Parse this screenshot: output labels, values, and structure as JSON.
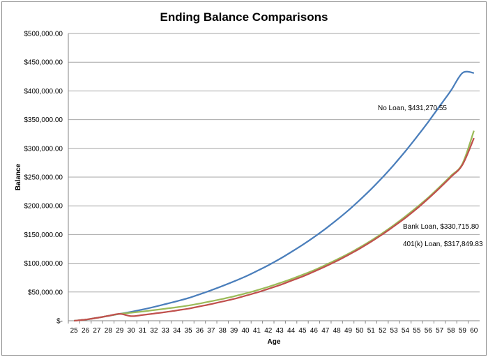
{
  "chart_data": {
    "type": "line",
    "title": "Ending Balance Comparisons",
    "xlabel": "Age",
    "ylabel": "Balance",
    "x": [
      25,
      26,
      27,
      28,
      29,
      30,
      31,
      32,
      33,
      34,
      35,
      36,
      37,
      38,
      39,
      40,
      41,
      42,
      43,
      44,
      45,
      46,
      47,
      48,
      49,
      50,
      51,
      52,
      53,
      54,
      55,
      56,
      57,
      58,
      59,
      60
    ],
    "ylim": [
      0,
      500000
    ],
    "yticks": [
      0,
      50000,
      100000,
      150000,
      200000,
      250000,
      300000,
      350000,
      400000,
      450000,
      500000
    ],
    "ytick_labels": [
      "$-",
      "$50,000.00",
      "$100,000.00",
      "$150,000.00",
      "$200,000.00",
      "$250,000.00",
      "$300,000.00",
      "$350,000.00",
      "$400,000.00",
      "$450,000.00",
      "$500,000.00"
    ],
    "grid": "horizontal",
    "legend": "none",
    "series": [
      {
        "color": "#4a7ebb",
        "values": [
          0,
          2000,
          5000,
          8500,
          12000,
          15500,
          19500,
          24000,
          29000,
          34000,
          39500,
          46000,
          53000,
          60500,
          68500,
          77000,
          86500,
          96500,
          107500,
          119500,
          132000,
          145500,
          160000,
          175500,
          192000,
          210000,
          229000,
          249500,
          271500,
          295000,
          320000,
          346000,
          373500,
          401000,
          431270.55,
          431270.55
        ]
      },
      {
        "color": "#9bbb59",
        "values": [
          0,
          2000,
          5000,
          8500,
          12000,
          14000,
          16000,
          18500,
          21000,
          23500,
          26500,
          30000,
          34000,
          38000,
          42500,
          47500,
          53000,
          59000,
          65500,
          72500,
          80000,
          88000,
          97000,
          106500,
          116500,
          127500,
          139500,
          152500,
          166500,
          181500,
          197500,
          214500,
          233000,
          252500,
          273500,
          330715.8
        ]
      },
      {
        "color": "#c0504d",
        "values": [
          0,
          2000,
          5000,
          8500,
          12000,
          8000,
          10000,
          12500,
          15000,
          18000,
          21000,
          25000,
          29000,
          33500,
          38000,
          43500,
          49000,
          55500,
          62000,
          69500,
          77000,
          85500,
          94500,
          104000,
          114500,
          125500,
          137500,
          150500,
          164500,
          179000,
          195000,
          212500,
          231000,
          250500,
          271500,
          317849.83
        ]
      }
    ],
    "annotations": [
      {
        "text": "No Loan,  $431,270.55"
      },
      {
        "text": "Bank Loan,  $330,715.80"
      },
      {
        "text": "401(k) Loan,  $317,849.83"
      }
    ]
  }
}
